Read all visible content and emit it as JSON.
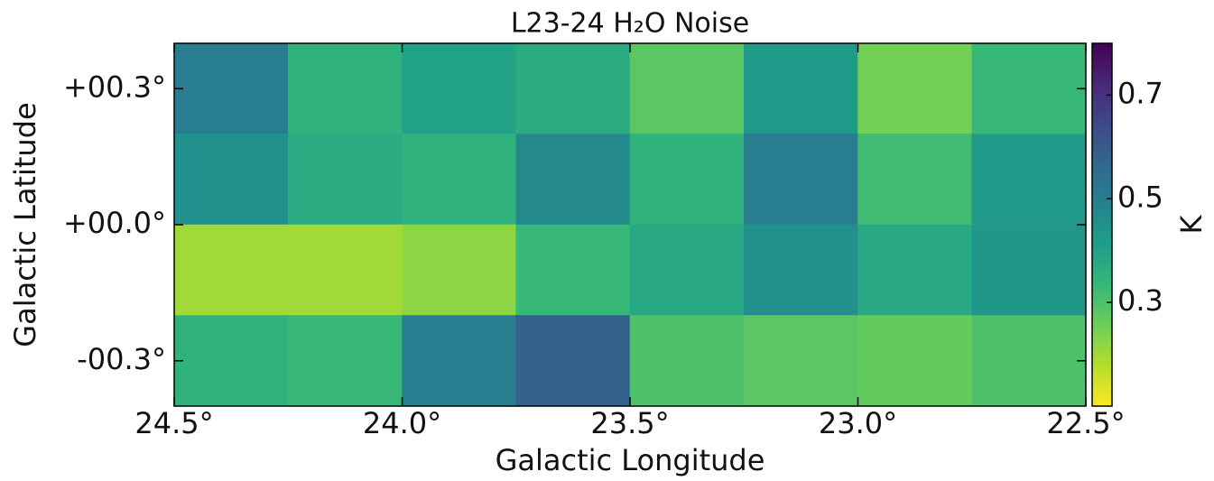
{
  "chart_data": {
    "type": "heatmap",
    "title": "L23-24 H₂O Noise",
    "x_label": "Galactic Longitude",
    "y_label": "Galactic Latitude",
    "colorbar_label": "K",
    "colormap": "viridis_r",
    "x_edges": [
      24.5,
      24.25,
      24.0,
      23.75,
      23.5,
      23.25,
      23.0,
      22.75,
      22.5
    ],
    "y_edges": [
      0.4,
      0.2,
      0,
      -0.2,
      -0.4
    ],
    "values": [
      [
        0.5,
        0.35,
        0.4,
        0.37,
        0.28,
        0.42,
        0.25,
        0.33
      ],
      [
        0.45,
        0.37,
        0.35,
        0.47,
        0.35,
        0.5,
        0.32,
        0.42
      ],
      [
        0.2,
        0.2,
        0.22,
        0.33,
        0.38,
        0.45,
        0.38,
        0.43
      ],
      [
        0.35,
        0.33,
        0.5,
        0.58,
        0.3,
        0.28,
        0.27,
        0.3
      ]
    ],
    "xlim": [
      24.5,
      22.5
    ],
    "xticks": [
      {
        "value": 24.5,
        "label": "24.5°"
      },
      {
        "value": 24.0,
        "label": "24.0°"
      },
      {
        "value": 23.5,
        "label": "23.5°"
      },
      {
        "value": 23.0,
        "label": "23.0°"
      },
      {
        "value": 22.5,
        "label": "22.5°"
      }
    ],
    "ylim": [
      -0.4,
      0.4
    ],
    "yticks": [
      {
        "value": 0.3,
        "label": "+00.3°"
      },
      {
        "value": 0,
        "label": "+00.0°"
      },
      {
        "value": -0.3,
        "label": "-00.3°"
      }
    ],
    "clim": [
      0.1,
      0.8
    ],
    "cticks": [
      0.3,
      0.5,
      0.7
    ]
  }
}
